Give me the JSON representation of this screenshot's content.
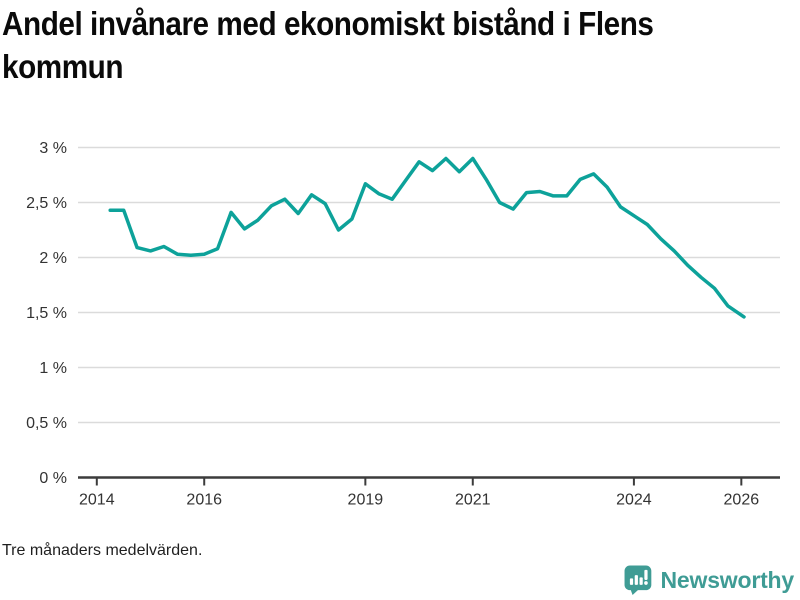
{
  "header": {
    "title_line1": "Andel invånare med ekonomiskt bistånd i Flens",
    "title_line2": "kommun",
    "title_full": "Andel invånare med ekonomiskt bistånd i Flens kommun"
  },
  "footer": {
    "note": "Tre månaders medelvärden."
  },
  "branding": {
    "name": "Newsworthy",
    "logo_icon": "bar-chart-speech-bubble-icon",
    "logo_color": "#3F9C95"
  },
  "chart_data": {
    "type": "line",
    "title": "Andel invånare med ekonomiskt bistånd i Flens kommun",
    "note": "Tre månaders medelvärden.",
    "unit": "%",
    "grid": "horizontal",
    "legend": "none",
    "line_color": "#0DA29A",
    "grid_color": "#DBDBDB",
    "axis_color": "#3C3C3C",
    "label_color": "#333333",
    "xlim": [
      2013.65,
      2026.72
    ],
    "ylim": [
      0,
      3
    ],
    "x_ticks": [
      {
        "value": 2014,
        "label": "2014"
      },
      {
        "value": 2016,
        "label": "2016"
      },
      {
        "value": 2019,
        "label": "2019"
      },
      {
        "value": 2021,
        "label": "2021"
      },
      {
        "value": 2024,
        "label": "2024"
      },
      {
        "value": 2026,
        "label": "2026"
      }
    ],
    "y_ticks": [
      {
        "value": 0,
        "label": "0 %"
      },
      {
        "value": 0.5,
        "label": "0,5 %"
      },
      {
        "value": 1,
        "label": "1 %"
      },
      {
        "value": 1.5,
        "label": "1,5 %"
      },
      {
        "value": 2,
        "label": "2 %"
      },
      {
        "value": 2.5,
        "label": "2,5 %"
      },
      {
        "value": 3,
        "label": "3 %"
      }
    ],
    "series": [
      {
        "name": "Andel invånare med ekonomiskt bistånd",
        "x": [
          2014.25,
          2014.5,
          2014.75,
          2015.0,
          2015.25,
          2015.5,
          2015.75,
          2016.0,
          2016.25,
          2016.5,
          2016.75,
          2017.0,
          2017.25,
          2017.5,
          2017.75,
          2018.0,
          2018.25,
          2018.5,
          2018.75,
          2019.0,
          2019.25,
          2019.5,
          2019.75,
          2020.0,
          2020.25,
          2020.5,
          2020.75,
          2021.0,
          2021.25,
          2021.5,
          2021.75,
          2022.0,
          2022.25,
          2022.5,
          2022.75,
          2023.0,
          2023.25,
          2023.5,
          2023.75,
          2024.0,
          2024.25,
          2024.5,
          2024.75,
          2025.0,
          2025.25,
          2025.5,
          2025.75,
          2026.05
        ],
        "values": [
          2.43,
          2.43,
          2.09,
          2.06,
          2.1,
          2.03,
          2.02,
          2.03,
          2.08,
          2.41,
          2.26,
          2.34,
          2.47,
          2.53,
          2.4,
          2.57,
          2.49,
          2.25,
          2.35,
          2.67,
          2.58,
          2.53,
          2.7,
          2.87,
          2.79,
          2.9,
          2.78,
          2.9,
          2.71,
          2.5,
          2.44,
          2.59,
          2.6,
          2.56,
          2.56,
          2.71,
          2.76,
          2.64,
          2.46,
          2.38,
          2.3,
          2.17,
          2.06,
          1.93,
          1.82,
          1.72,
          1.56,
          1.46
        ]
      }
    ]
  }
}
